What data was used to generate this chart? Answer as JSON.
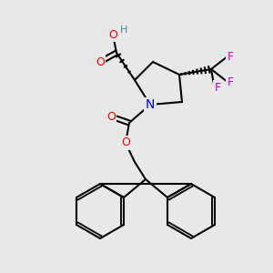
{
  "bg_color": "#e8e8e8",
  "bond_color": "#000000",
  "bond_lw": 1.5,
  "atom_colors": {
    "O": "#ff0000",
    "N": "#0000ff",
    "F": "#cc00cc",
    "H": "#4a8f8f",
    "C": "#000000"
  },
  "font_size": 9,
  "font_size_small": 8
}
